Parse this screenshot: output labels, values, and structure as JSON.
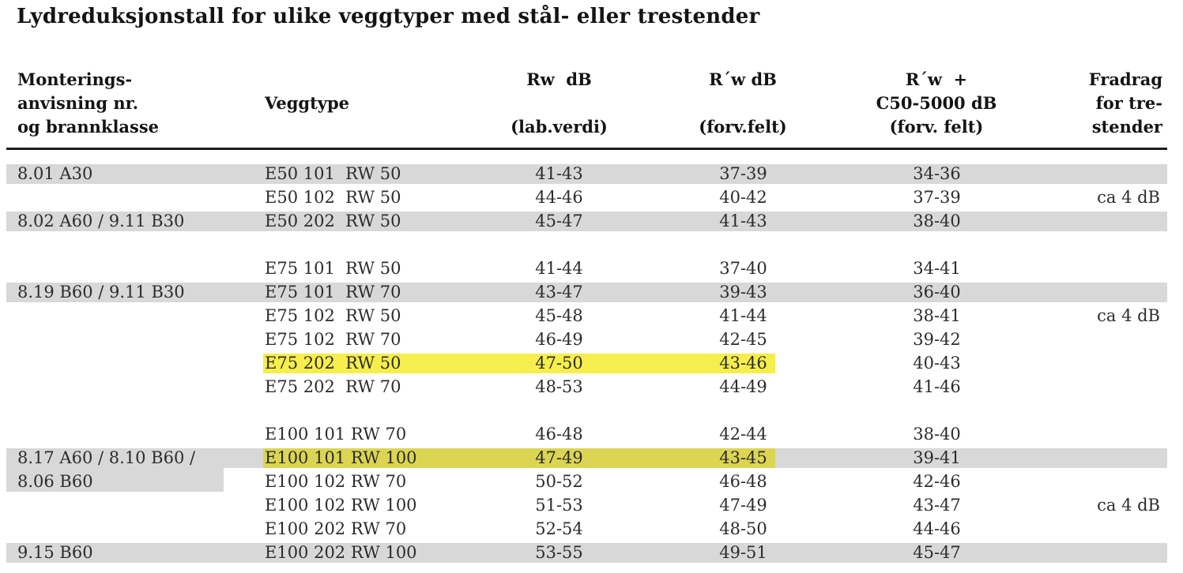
{
  "title": "Lydreduksjonstall for ulike veggtyper med stål- eller trestender",
  "colors": {
    "gray": "#d8d8d8",
    "yellowBright": "#f6ee4d",
    "yellowDark": "#dcd553",
    "rule": "#1b1b1b",
    "text": "#2c2c2c",
    "heading": "#141414"
  },
  "table": {
    "header": {
      "col1": [
        "Monterings-",
        "anvisning nr.",
        "og brannklasse"
      ],
      "col2": [
        "Veggtype"
      ],
      "col3": [
        "Rw  dB",
        "(lab.verdi)"
      ],
      "col4": [
        "R´w dB",
        "(forv.felt)"
      ],
      "col5": [
        "R´w  +",
        "C50-5000 dB",
        "(forv. felt)"
      ],
      "col6": [
        "Fradrag",
        "for tre-",
        "stender"
      ]
    },
    "columns": [
      "Monteringsanvisning nr. og brannklasse",
      "Veggtype",
      "Rw dB (lab.verdi)",
      "R´w dB (forv.felt)",
      "R´w + C50-5000 dB (forv. felt)",
      "Fradrag for trestender"
    ],
    "rows": [
      {
        "klasse": "8.01 A30",
        "veggtype": "E50 101  RW 50",
        "rw_lab": "41-43",
        "rw_felt": "37-39",
        "rw_c50": "34-36",
        "fradrag": "",
        "bg": "gray",
        "highlight": null,
        "col1_block": null
      },
      {
        "klasse": "",
        "veggtype": "E50 102  RW 50",
        "rw_lab": "44-46",
        "rw_felt": "40-42",
        "rw_c50": "37-39",
        "fradrag": "ca 4 dB",
        "bg": "white",
        "highlight": null,
        "col1_block": null
      },
      {
        "klasse": "8.02 A60 / 9.11 B30",
        "veggtype": "E50 202  RW 50",
        "rw_lab": "45-47",
        "rw_felt": "41-43",
        "rw_c50": "38-40",
        "fradrag": "",
        "bg": "gray",
        "highlight": null,
        "col1_block": null
      },
      {
        "klasse": "",
        "veggtype": "",
        "rw_lab": "",
        "rw_felt": "",
        "rw_c50": "",
        "fradrag": "",
        "bg": "white",
        "highlight": null,
        "col1_block": null
      },
      {
        "klasse": "",
        "veggtype": "E75 101  RW 50",
        "rw_lab": "41-44",
        "rw_felt": "37-40",
        "rw_c50": "34-41",
        "fradrag": "",
        "bg": "white",
        "highlight": null,
        "col1_block": null
      },
      {
        "klasse": "8.19 B60 / 9.11 B30",
        "veggtype": "E75 101  RW 70",
        "rw_lab": "43-47",
        "rw_felt": "39-43",
        "rw_c50": "36-40",
        "fradrag": "",
        "bg": "gray",
        "highlight": null,
        "col1_block": null
      },
      {
        "klasse": "",
        "veggtype": "E75 102  RW 50",
        "rw_lab": "45-48",
        "rw_felt": "41-44",
        "rw_c50": "38-41",
        "fradrag": "ca 4 dB",
        "bg": "white",
        "highlight": null,
        "col1_block": null
      },
      {
        "klasse": "",
        "veggtype": "E75 102  RW 70",
        "rw_lab": "46-49",
        "rw_felt": "42-45",
        "rw_c50": "39-42",
        "fradrag": "",
        "bg": "white",
        "highlight": null,
        "col1_block": null
      },
      {
        "klasse": "",
        "veggtype": "E75 202  RW 50",
        "rw_lab": "47-50",
        "rw_felt": "43-46",
        "rw_c50": "40-43",
        "fradrag": "",
        "bg": "white",
        "highlight": "bright",
        "col1_block": null
      },
      {
        "klasse": "",
        "veggtype": "E75 202  RW 70",
        "rw_lab": "48-53",
        "rw_felt": "44-49",
        "rw_c50": "41-46",
        "fradrag": "",
        "bg": "white",
        "highlight": null,
        "col1_block": null
      },
      {
        "klasse": "",
        "veggtype": "",
        "rw_lab": "",
        "rw_felt": "",
        "rw_c50": "",
        "fradrag": "",
        "bg": "white",
        "highlight": null,
        "col1_block": null
      },
      {
        "klasse": "",
        "veggtype": "E100 101 RW 70",
        "rw_lab": "46-48",
        "rw_felt": "42-44",
        "rw_c50": "38-40",
        "fradrag": "",
        "bg": "white",
        "highlight": null,
        "col1_block": null
      },
      {
        "klasse": "8.17 A60 / 8.10 B60 /",
        "veggtype": "E100 101 RW 100",
        "rw_lab": "47-49",
        "rw_felt": "43-45",
        "rw_c50": "39-41",
        "fradrag": "",
        "bg": "gray",
        "highlight": "dark",
        "col1_block": "extend"
      },
      {
        "klasse": "8.06 B60",
        "veggtype": "E100 102 RW 70",
        "rw_lab": "50-52",
        "rw_felt": "46-48",
        "rw_c50": "42-46",
        "fradrag": "",
        "bg": "white",
        "highlight": null,
        "col1_block": "top"
      },
      {
        "klasse": "",
        "veggtype": "E100 102 RW 100",
        "rw_lab": "51-53",
        "rw_felt": "47-49",
        "rw_c50": "43-47",
        "fradrag": "ca 4 dB",
        "bg": "white",
        "highlight": null,
        "col1_block": null
      },
      {
        "klasse": "",
        "veggtype": "E100 202 RW 70",
        "rw_lab": "52-54",
        "rw_felt": "48-50",
        "rw_c50": "44-46",
        "fradrag": "",
        "bg": "white",
        "highlight": null,
        "col1_block": null
      },
      {
        "klasse": "9.15 B60",
        "veggtype": "E100 202 RW 100",
        "rw_lab": "53-55",
        "rw_felt": "49-51",
        "rw_c50": "45-47",
        "fradrag": "",
        "bg": "gray",
        "highlight": null,
        "col1_block": null
      }
    ]
  }
}
